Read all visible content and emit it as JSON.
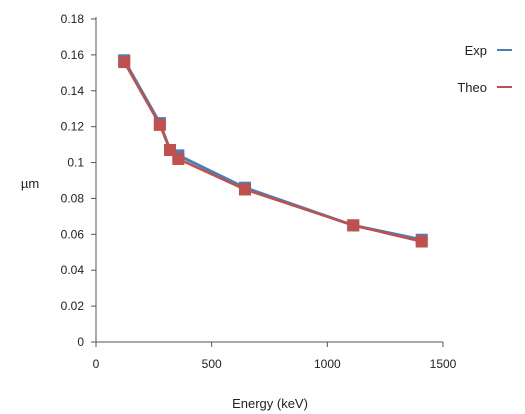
{
  "chart_data": {
    "type": "line",
    "xlabel": "Energy (keV)",
    "ylabel": "µm",
    "xlim": [
      0,
      1500
    ],
    "ylim": [
      0,
      0.18
    ],
    "x_ticks": [
      "0",
      "500",
      "1000",
      "1500"
    ],
    "y_ticks": [
      "0",
      "0.02",
      "0.04",
      "0.06",
      "0.08",
      "0.1",
      "0.12",
      "0.14",
      "0.16",
      "0.18"
    ],
    "grid": false,
    "legend_position": "right",
    "series": [
      {
        "name": "Exp",
        "color": "#4a7ebb",
        "marker": "square",
        "x": [
          122,
          276,
          320,
          356,
          644,
          1112,
          1408
        ],
        "y": [
          0.157,
          0.122,
          0.107,
          0.104,
          0.086,
          0.065,
          0.057
        ]
      },
      {
        "name": "Theo",
        "color": "#c0504d",
        "marker": "square",
        "x": [
          122,
          276,
          320,
          356,
          644,
          1112,
          1408
        ],
        "y": [
          0.156,
          0.121,
          0.107,
          0.102,
          0.085,
          0.065,
          0.056
        ]
      }
    ]
  }
}
